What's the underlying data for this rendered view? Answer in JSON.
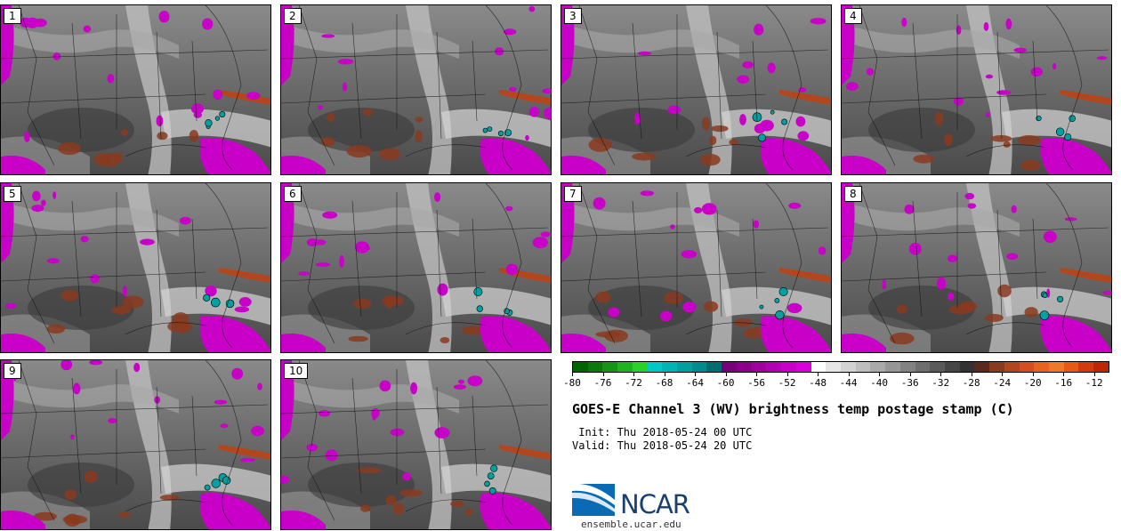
{
  "figure": {
    "title": "GOES-E Channel 3 (WV) brightness temp postage stamp (C)",
    "init_text": " Init: Thu 2018-05-24 00 UTC",
    "valid_text": "Valid: Thu 2018-05-24 20 UTC",
    "logo_text": "NCAR",
    "url": "ensemble.ucar.edu"
  },
  "panels": [
    {
      "label": "1"
    },
    {
      "label": "2"
    },
    {
      "label": "3"
    },
    {
      "label": "4"
    },
    {
      "label": "5"
    },
    {
      "label": "6"
    },
    {
      "label": "7"
    },
    {
      "label": "8"
    },
    {
      "label": "9"
    },
    {
      "label": "10"
    }
  ],
  "colorbar": {
    "min": -80,
    "max": -10,
    "tick_labels": [
      "-80",
      "-76",
      "-72",
      "-68",
      "-64",
      "-60",
      "-56",
      "-52",
      "-48",
      "-44",
      "-40",
      "-36",
      "-32",
      "-28",
      "-24",
      "-20",
      "-16",
      "-12"
    ],
    "colors": [
      "#006400",
      "#0a7a0a",
      "#149614",
      "#1eb41e",
      "#28d228",
      "#00c8c8",
      "#00b4b4",
      "#00a0a0",
      "#008c8c",
      "#006e6e",
      "#780078",
      "#8c008c",
      "#a000a0",
      "#b400b4",
      "#c800c8",
      "#dc00dc",
      "#ffffff",
      "#e6e6e6",
      "#d2d2d2",
      "#bebebe",
      "#aaaaaa",
      "#969696",
      "#828282",
      "#6e6e6e",
      "#5a5a5a",
      "#464646",
      "#323232",
      "#5a2a1e",
      "#8a3a1e",
      "#b4461e",
      "#d2501e",
      "#e6641e",
      "#f07828",
      "#e65a14",
      "#d23c0a",
      "#be2800"
    ]
  }
}
